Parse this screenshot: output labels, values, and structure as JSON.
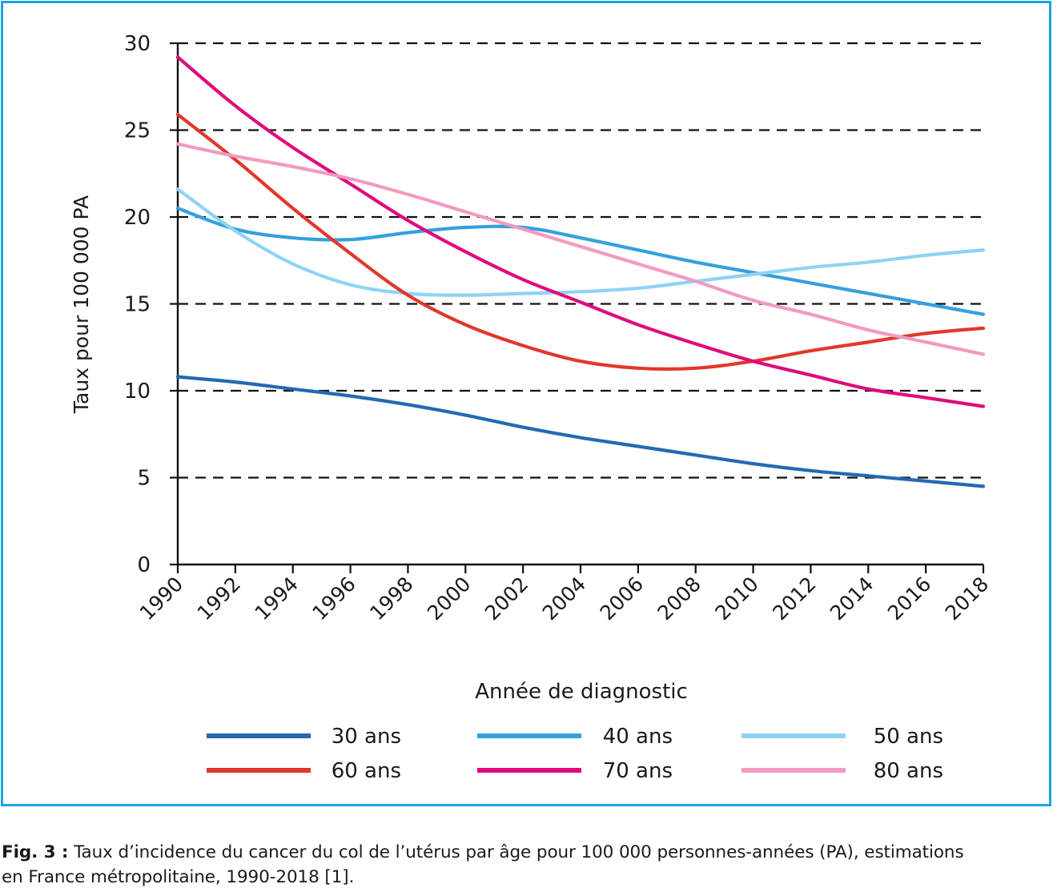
{
  "chart_data": {
    "type": "line",
    "xlabel": "Année de diagnostic",
    "ylabel": "Taux pour 100 000 PA",
    "ylim": [
      0,
      30
    ],
    "xlim": [
      1990,
      2018
    ],
    "y_ticks": [
      "0",
      "5",
      "10",
      "15",
      "20",
      "25",
      "30"
    ],
    "x_ticks": [
      "1990",
      "1992",
      "1994",
      "1996",
      "1998",
      "2000",
      "2002",
      "2004",
      "2006",
      "2008",
      "2010",
      "2012",
      "2014",
      "2016",
      "2018"
    ],
    "grid": "dashed horizontal",
    "legend_position": "bottom",
    "x": [
      1990,
      1992,
      1994,
      1996,
      1998,
      2000,
      2002,
      2004,
      2006,
      2008,
      2010,
      2012,
      2014,
      2016,
      2018
    ],
    "series": [
      {
        "name": "30 ans",
        "color": "#2469b3",
        "values": [
          10.8,
          10.5,
          10.1,
          9.7,
          9.2,
          8.6,
          7.9,
          7.3,
          6.8,
          6.3,
          5.8,
          5.4,
          5.1,
          4.8,
          4.5
        ]
      },
      {
        "name": "40 ans",
        "color": "#34a0de",
        "values": [
          20.5,
          19.3,
          18.8,
          18.7,
          19.1,
          19.4,
          19.4,
          18.8,
          18.1,
          17.4,
          16.8,
          16.2,
          15.6,
          15.0,
          14.4
        ]
      },
      {
        "name": "50 ans",
        "color": "#8fd3f5",
        "values": [
          21.6,
          19.2,
          17.3,
          16.1,
          15.6,
          15.5,
          15.6,
          15.7,
          15.9,
          16.3,
          16.7,
          17.1,
          17.4,
          17.8,
          18.1
        ]
      },
      {
        "name": "60 ans",
        "color": "#e2372b",
        "values": [
          25.9,
          23.3,
          20.5,
          17.9,
          15.5,
          13.8,
          12.6,
          11.7,
          11.3,
          11.3,
          11.7,
          12.3,
          12.8,
          13.3,
          13.6
        ]
      },
      {
        "name": "70 ans",
        "color": "#df0b7b",
        "values": [
          29.2,
          26.4,
          24.0,
          21.9,
          19.8,
          18.0,
          16.4,
          15.1,
          13.8,
          12.7,
          11.7,
          10.9,
          10.1,
          9.6,
          9.1
        ]
      },
      {
        "name": "80 ans",
        "color": "#f19ac2",
        "values": [
          24.2,
          23.5,
          22.9,
          22.2,
          21.3,
          20.3,
          19.3,
          18.3,
          17.3,
          16.3,
          15.2,
          14.4,
          13.5,
          12.8,
          12.1
        ]
      }
    ]
  },
  "caption": {
    "label": "Fig. 3 :",
    "text_line1": " Taux d’incidence du cancer du col de l’utérus par âge pour 100 000 personnes-années (PA), estimations",
    "text_line2": "en France métropolitaine, 1990-2018 [1]."
  }
}
